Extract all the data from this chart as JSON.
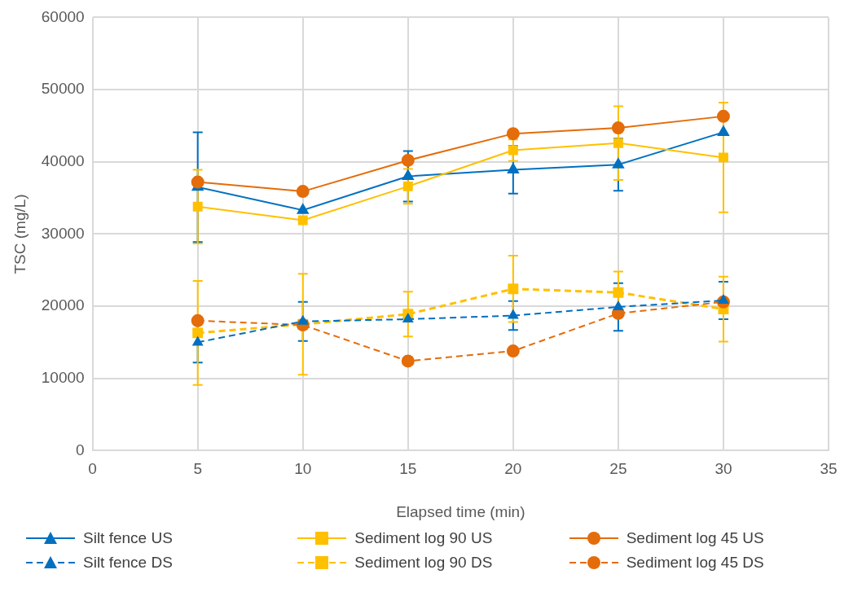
{
  "chart_data": {
    "type": "line",
    "xlabel": "Elapsed time (min)",
    "ylabel": "TSC (mg/L)",
    "x": [
      5,
      10,
      15,
      20,
      25,
      30
    ],
    "xlim": [
      0,
      35
    ],
    "xticks": [
      0,
      5,
      10,
      15,
      20,
      25,
      30,
      35
    ],
    "ylim": [
      0,
      60000
    ],
    "yticks": [
      0,
      10000,
      20000,
      30000,
      40000,
      50000,
      60000
    ],
    "grid": true,
    "legend": "bottom",
    "series": [
      {
        "name": "Silt fence US",
        "color": "#0070c0",
        "marker": "triangle",
        "line_style": "solid",
        "values": [
          36500,
          33300,
          38000,
          38900,
          39600,
          44100
        ],
        "errors": [
          7600,
          null,
          3500,
          3300,
          3600,
          null
        ]
      },
      {
        "name": "Sediment log 90 US",
        "color": "#ffc000",
        "marker": "square",
        "line_style": "solid",
        "values": [
          33800,
          31900,
          36600,
          41600,
          42600,
          40600
        ],
        "errors": [
          5100,
          null,
          2400,
          1500,
          5100,
          7600
        ]
      },
      {
        "name": "Sediment log 45 US",
        "color": "#e46c0a",
        "marker": "circle",
        "line_style": "solid",
        "values": [
          37200,
          35900,
          40200,
          43900,
          44700,
          46300
        ]
      },
      {
        "name": "Silt fence DS",
        "color": "#0070c0",
        "marker": "triangle",
        "line_style": "dashed",
        "values": [
          15000,
          17900,
          18200,
          18700,
          19900,
          20800
        ],
        "errors": [
          2800,
          2700,
          null,
          2000,
          3300,
          2600
        ]
      },
      {
        "name": "Sediment log 90 DS",
        "color": "#ffc000",
        "marker": "square",
        "line_style": "dashed",
        "values": [
          16300,
          17500,
          18900,
          22400,
          21900,
          19600
        ],
        "errors": [
          7200,
          7000,
          3100,
          4600,
          2900,
          4500
        ]
      },
      {
        "name": "Sediment log 45 DS",
        "color": "#e46c0a",
        "marker": "circle",
        "line_style": "dashed",
        "values": [
          18000,
          17400,
          12400,
          13800,
          19000,
          20600
        ]
      }
    ]
  }
}
